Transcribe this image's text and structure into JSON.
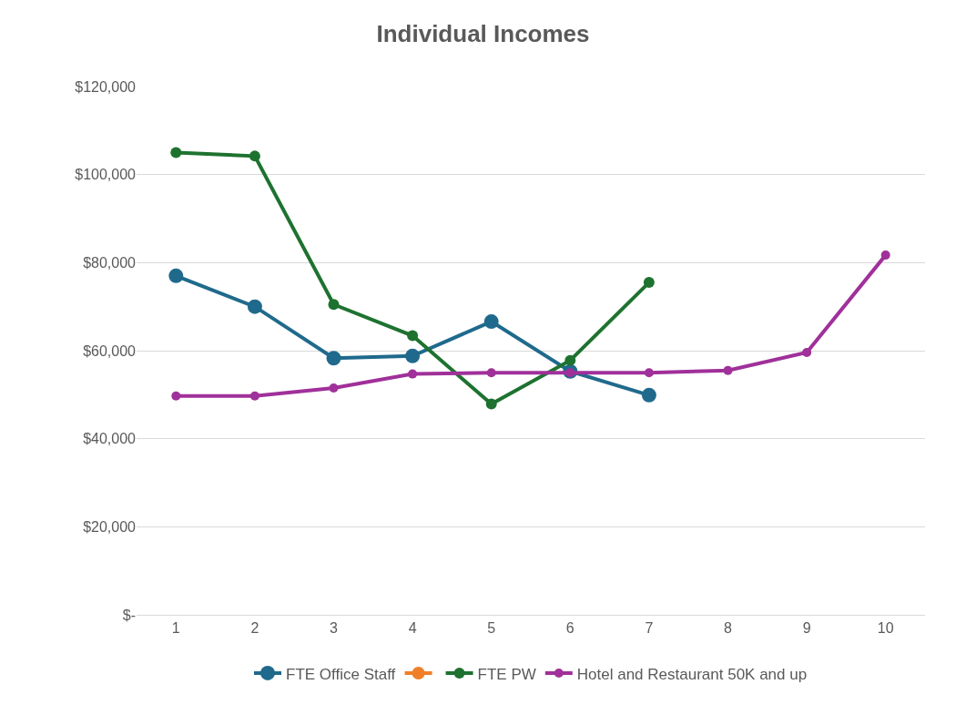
{
  "chart_data": {
    "type": "line",
    "title": "Individual Incomes",
    "categories": [
      "1",
      "2",
      "3",
      "4",
      "5",
      "6",
      "7",
      "8",
      "9",
      "10"
    ],
    "series": [
      {
        "name": "FTE Office Staff",
        "color": "#1f6a8c",
        "values": [
          77000,
          70000,
          58300,
          58800,
          66600,
          55300,
          49900,
          null,
          null,
          null
        ]
      },
      {
        "color": "#f07f2a",
        "values": [
          null,
          null,
          null,
          null,
          null,
          null,
          null,
          null,
          null,
          null
        ]
      },
      {
        "name": "FTE PW",
        "color": "#1e7230",
        "values": [
          105000,
          104200,
          70500,
          63400,
          47900,
          57800,
          75500,
          null,
          null,
          null
        ]
      },
      {
        "name": "Hotel and Restaurant 50K and up",
        "color": "#a0309a",
        "values": [
          49700,
          49700,
          51500,
          54700,
          55000,
          55000,
          55000,
          55500,
          59600,
          81700
        ]
      }
    ],
    "ylim": [
      0,
      120000
    ],
    "yticks": [
      {
        "value": 0,
        "label": "$-"
      },
      {
        "value": 20000,
        "label": "$20,000"
      },
      {
        "value": 40000,
        "label": "$40,000"
      },
      {
        "value": 60000,
        "label": "$60,000"
      },
      {
        "value": 80000,
        "label": "$80,000"
      },
      {
        "value": 100000,
        "label": "$100,000"
      },
      {
        "value": 120000,
        "label": "$120,000"
      }
    ],
    "grid": "y",
    "legend": "bottom",
    "marker": "circle",
    "line_style": "solid"
  }
}
